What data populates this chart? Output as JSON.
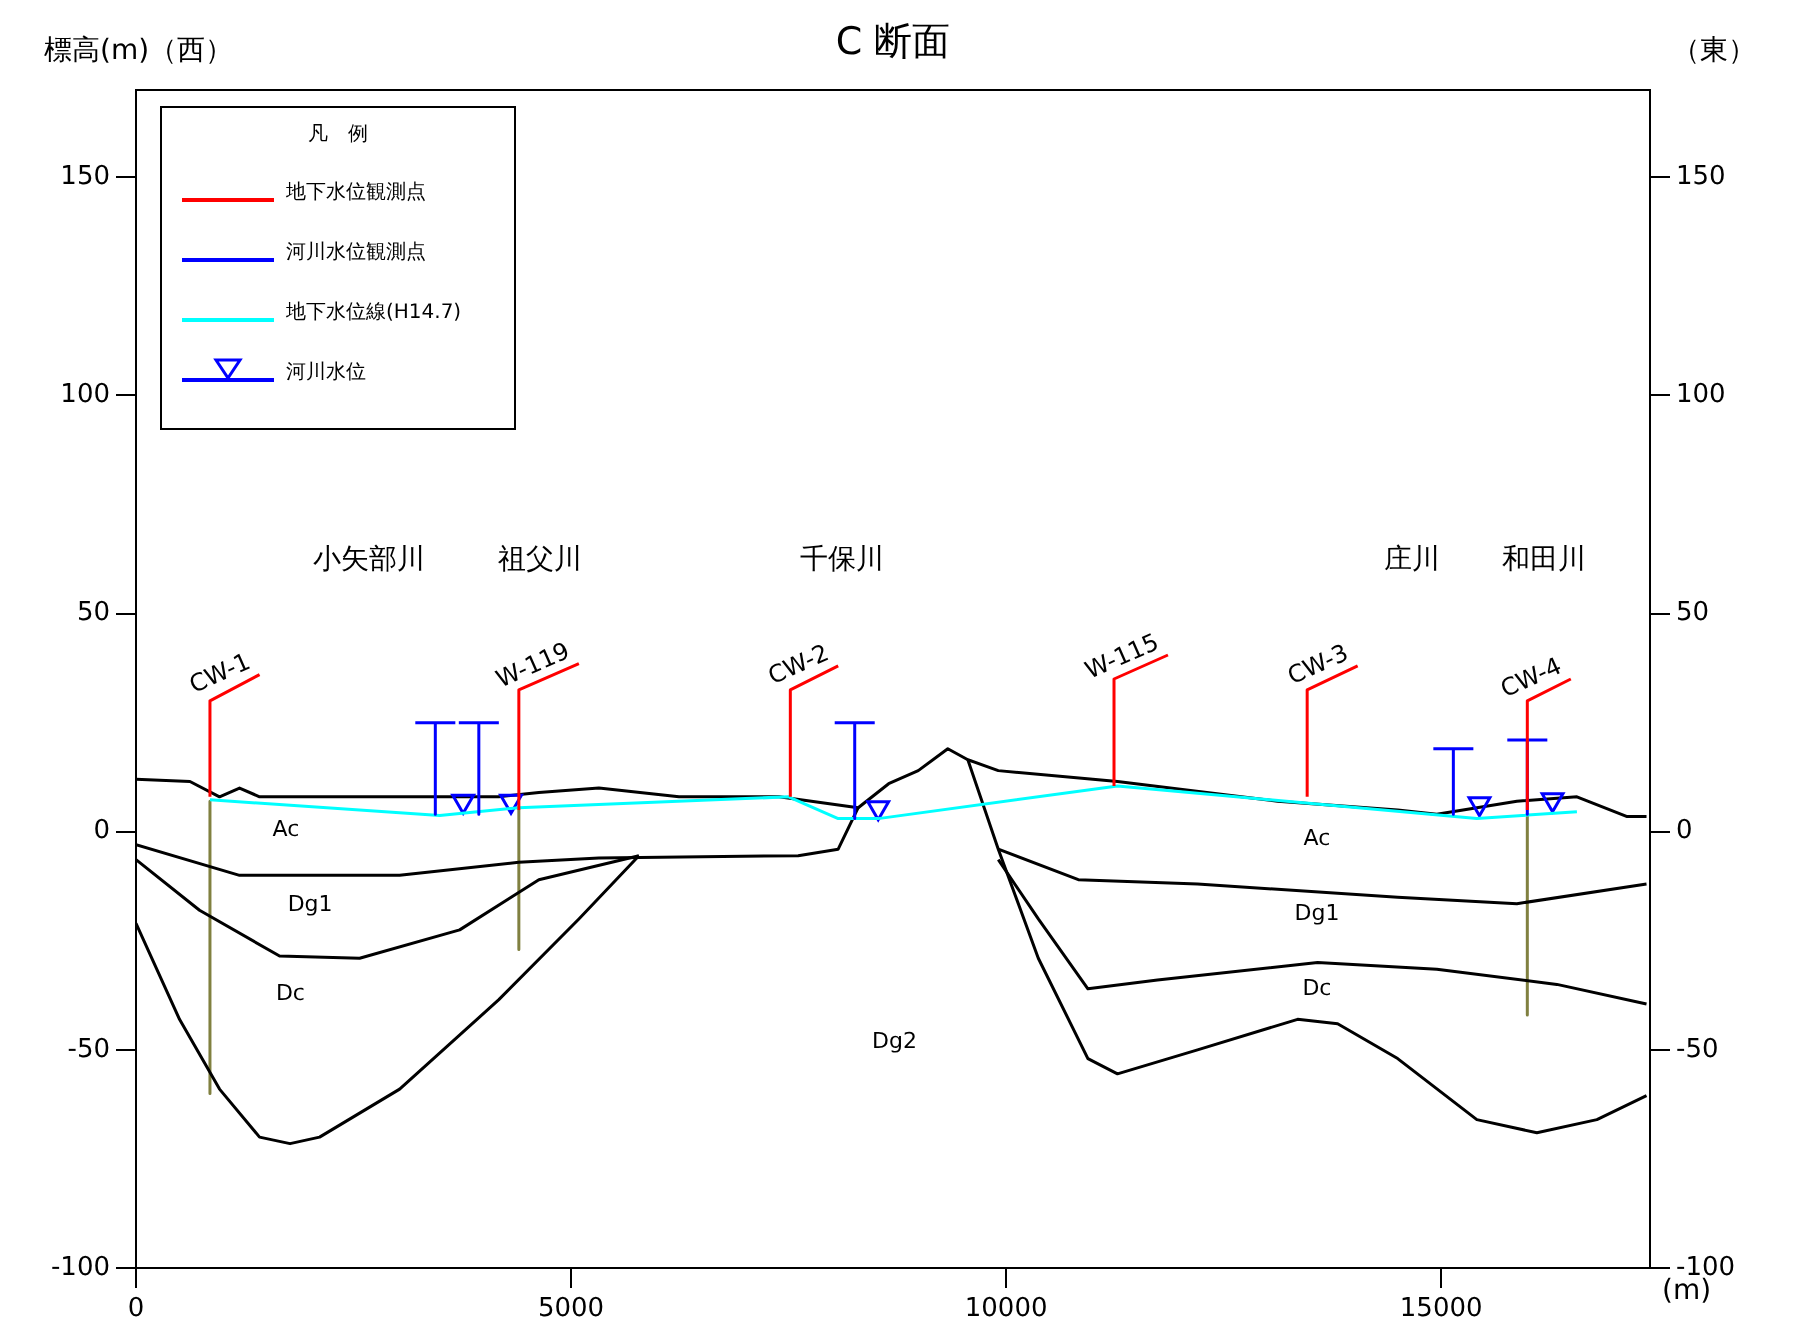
{
  "chart_data": {
    "type": "line",
    "title": "C 断面",
    "ylabel": "標高(m)（西）",
    "xlabel": "(m)",
    "legend_title": "凡　例",
    "legend": "top left",
    "xlim": [
      0,
      17400
    ],
    "xticks": [
      0,
      5000,
      10000,
      15000
    ],
    "ylim": [
      -100,
      170
    ],
    "yticks": [
      -100,
      -50,
      0,
      50,
      100,
      150
    ],
    "y2lim": [
      -100,
      170
    ],
    "y2ticks": [
      -100,
      -50,
      0,
      50,
      100,
      150
    ],
    "series": [
      {
        "name": "地下水位観測点",
        "color": "#ff0000",
        "marker": "none",
        "x": [
          850,
          850,
          1420,
          null,
          4400,
          4400,
          5090,
          null,
          7520,
          7520,
          8070,
          null,
          11240,
          11240,
          11860,
          null,
          13460,
          13460,
          14040,
          null,
          15990,
          15990,
          16490
        ],
        "values": [
          8,
          30,
          36,
          null,
          5,
          32.5,
          38.5,
          null,
          8,
          32.5,
          38,
          null,
          10.5,
          35,
          40.5,
          null,
          8,
          32.5,
          38,
          null,
          5,
          30,
          35
        ]
      },
      {
        "name": "河川水位観測点",
        "color": "#0000ff",
        "marker": "none",
        "x": [
          3210,
          3670,
          null,
          3440,
          3440,
          null,
          3710,
          4170,
          null,
          3940,
          3940,
          null,
          8030,
          8490,
          null,
          8260,
          8260,
          null,
          14910,
          15370,
          null,
          15140,
          15140,
          null,
          15760,
          16220,
          null,
          15990,
          15990
        ],
        "values": [
          25,
          25,
          null,
          25,
          4,
          null,
          25,
          25,
          null,
          25,
          4,
          null,
          25,
          25,
          null,
          25,
          3,
          null,
          19,
          19,
          null,
          19,
          4,
          null,
          21,
          21,
          null,
          21,
          4
        ]
      },
      {
        "name": "地下水位線(H14.7)",
        "color": "#00ffff",
        "marker": "none",
        "x": [
          850,
          3490,
          4400,
          7500,
          8070,
          8530,
          11280,
          15410,
          16560
        ],
        "values": [
          7.3,
          3.7,
          5.5,
          8,
          3,
          3,
          10.5,
          3,
          4.6
        ]
      },
      {
        "name": "河川水位",
        "type": "scatter",
        "color": "#0000ff",
        "marker": "triangle",
        "x": [
          3760,
          4310,
          8530,
          15440,
          16280
        ],
        "values": [
          7,
          7,
          5.5,
          6.4,
          7.3
        ]
      },
      {
        "color": "#000000",
        "marker": "none",
        "x": [
          0,
          620,
          960,
          1190,
          1420,
          4170,
          4630,
          5320,
          6240,
          7390,
          8300,
          8650,
          8990,
          9330,
          9560,
          9910,
          11280,
          13120,
          14500,
          14950,
          15870,
          16560,
          17130,
          17360
        ],
        "values": [
          12,
          11.5,
          8,
          10,
          8,
          8,
          9,
          10,
          8,
          8,
          5.5,
          11,
          14,
          19,
          16.5,
          14,
          11.5,
          7,
          5,
          4,
          7,
          8,
          3.5,
          3.5
        ]
      },
      {
        "color": "#000000",
        "marker": "none",
        "x": [
          0,
          1190,
          3030,
          4400,
          5320,
          7610,
          8070,
          8300,
          null,
          9910,
          10830,
          12200,
          14500,
          15870,
          17360
        ],
        "values": [
          -3,
          -10,
          -10,
          -7,
          -6,
          -5.5,
          -4,
          5.5,
          null,
          -4,
          -11,
          -12,
          -15,
          -16.5,
          -12
        ]
      },
      {
        "color": "#000000",
        "marker": "none",
        "x": [
          0,
          730,
          1650,
          2570,
          3720,
          4630,
          5780,
          null,
          9910,
          10370,
          10940,
          11740,
          13580,
          14950,
          16330,
          17360
        ],
        "values": [
          -6.4,
          -18,
          -28.5,
          -29,
          -22.5,
          -11,
          -5.5,
          null,
          -6.4,
          -20,
          -36,
          -34,
          -30,
          -31.5,
          -35,
          -39.5
        ]
      },
      {
        "color": "#000000",
        "marker": "none",
        "x": [
          0,
          500,
          960,
          1420,
          1770,
          2110,
          3030,
          4170,
          5090,
          5780,
          null,
          9560,
          9910,
          10370,
          10940,
          11280,
          12200,
          13350,
          13810,
          14500,
          15410,
          16100,
          16790,
          17360
        ],
        "values": [
          -21,
          -43,
          -59,
          -70,
          -71.5,
          -70,
          -59,
          -38.5,
          -20,
          -5.5,
          null,
          16.5,
          -4,
          -29,
          -52,
          -55.5,
          -50,
          -43,
          -44,
          -52,
          -66,
          -69,
          -66,
          -60.5
        ]
      },
      {
        "color": "#808040",
        "marker": "none",
        "x": [
          850,
          850,
          null,
          4400,
          4400,
          null,
          15990,
          15990
        ],
        "values": [
          7,
          -60,
          null,
          5,
          -27,
          null,
          4,
          -42
        ]
      }
    ],
    "annotations": [
      "（東）",
      {
        "text": "CW-1",
        "x": 1420,
        "y": 36
      },
      {
        "text": "W-119",
        "x": 5090,
        "y": 38.5
      },
      {
        "text": "CW-2",
        "x": 8070,
        "y": 38
      },
      {
        "text": "W-115",
        "x": 11860,
        "y": 40.5
      },
      {
        "text": "CW-3",
        "x": 14040,
        "y": 38
      },
      {
        "text": "CW-4",
        "x": 16490,
        "y": 35
      },
      "小矢部川",
      "祖父川",
      "千保川",
      "庄川",
      "和田川",
      "Ac",
      "Dg1",
      "Dc",
      "Dg2",
      "Ac",
      "Dg1",
      "Dc"
    ]
  }
}
